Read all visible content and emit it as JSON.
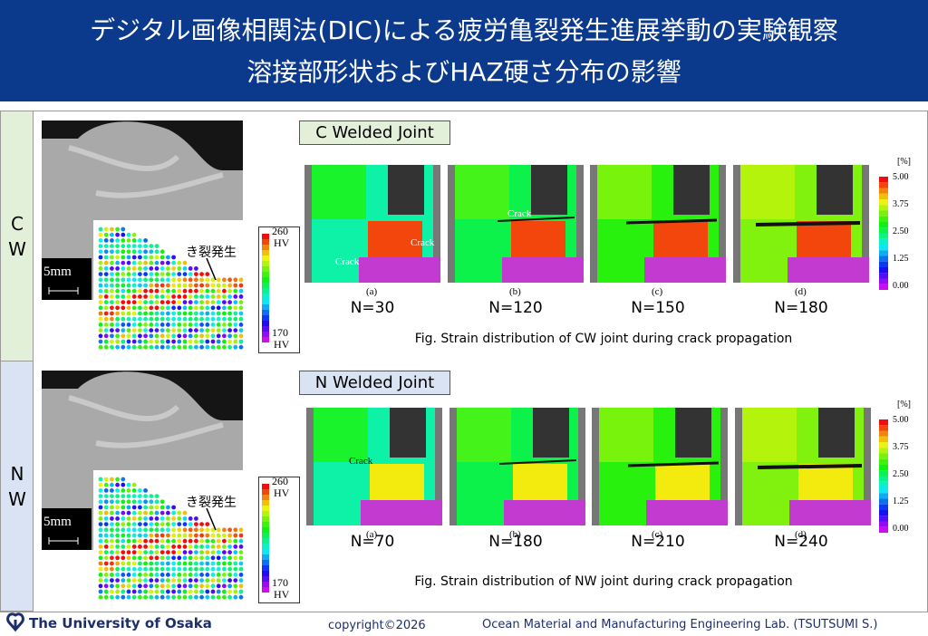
{
  "header": {
    "title_lines": [
      "デジタル画像相関法(DIC)による疲労亀裂発生進展挙動の実験観察",
      "溶接部形状およびHAZ硬さ分布の影響"
    ]
  },
  "hardness_scale": {
    "max": "260",
    "min": "170",
    "unit": "HV"
  },
  "strain_scale": {
    "unit": "[%]",
    "ticks": [
      "5.00",
      "3.75",
      "2.50",
      "1.25",
      "0.00"
    ]
  },
  "scale_bar": "5mm",
  "crack_initiation_label": "き裂発生",
  "crack_label": "Crack",
  "rows": [
    {
      "label": "CW",
      "section_title": "C Welded Joint",
      "panels": [
        {
          "letter": "(a)",
          "cycles": "N=30"
        },
        {
          "letter": "(b)",
          "cycles": "N=120"
        },
        {
          "letter": "(c)",
          "cycles": "N=150"
        },
        {
          "letter": "(d)",
          "cycles": "N=180"
        }
      ],
      "caption": "Fig.  Strain distribution of CW joint during crack propagation"
    },
    {
      "label": "NW",
      "section_title": "N Welded Joint",
      "panels": [
        {
          "letter": "(a)",
          "cycles": "N=70"
        },
        {
          "letter": "(b)",
          "cycles": "N=180"
        },
        {
          "letter": "(c)",
          "cycles": "N=210"
        },
        {
          "letter": "(d)",
          "cycles": "N=240"
        }
      ],
      "caption": "Fig.  Strain distribution of NW joint during crack propagation"
    }
  ],
  "footer": {
    "university": "The University of Osaka",
    "copyright": "copyright©2026",
    "lab": "Ocean Material and Manufacturing Engineering Lab. (TSUTSUMI S.)"
  }
}
